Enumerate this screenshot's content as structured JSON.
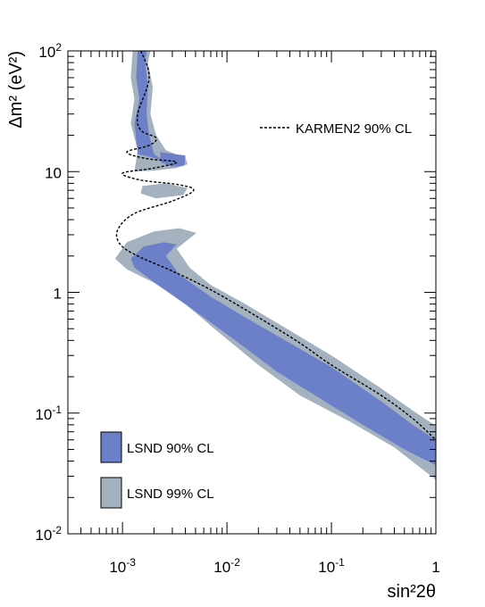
{
  "chart_data": {
    "type": "area",
    "xscale": "log",
    "yscale": "log",
    "xlim": [
      0.0003,
      1
    ],
    "ylim": [
      0.01,
      100
    ],
    "xlabel": "sin²2θ",
    "ylabel": "Δm² (eV²)",
    "x_ticks": [
      {
        "value": 0.001,
        "base": "10",
        "exp": "-3"
      },
      {
        "value": 0.01,
        "base": "10",
        "exp": "-2"
      },
      {
        "value": 0.1,
        "base": "10",
        "exp": "-1"
      },
      {
        "value": 1,
        "base": "1",
        "exp": ""
      }
    ],
    "y_ticks": [
      {
        "value": 0.01,
        "base": "10",
        "exp": "-2"
      },
      {
        "value": 0.1,
        "base": "10",
        "exp": "-1"
      },
      {
        "value": 1,
        "base": "1",
        "exp": ""
      },
      {
        "value": 10,
        "base": "10",
        "exp": ""
      },
      {
        "value": 100,
        "base": "10",
        "exp": "2"
      }
    ],
    "grid": false,
    "series": [
      {
        "name": "LSND 99% CL",
        "color": "#a4b2bf",
        "kind": "region",
        "polygon": [
          [
            0.00125,
            100
          ],
          [
            0.00185,
            100
          ],
          [
            0.00175,
            80
          ],
          [
            0.00195,
            50
          ],
          [
            0.00185,
            30
          ],
          [
            0.0021,
            20
          ],
          [
            0.0026,
            15
          ],
          [
            0.004,
            13
          ],
          [
            0.0042,
            11.5
          ],
          [
            0.0033,
            10.7
          ],
          [
            0.002,
            10.2
          ],
          [
            0.0013,
            10
          ],
          [
            0.0014,
            15
          ],
          [
            0.0012,
            25
          ],
          [
            0.0013,
            40
          ],
          [
            0.0012,
            60
          ]
        ],
        "polygon2": [
          [
            0.00155,
            7.6
          ],
          [
            0.0026,
            8.0
          ],
          [
            0.0042,
            7.3
          ],
          [
            0.0038,
            6.4
          ],
          [
            0.0021,
            6.0
          ],
          [
            0.0015,
            6.6
          ]
        ],
        "polygon3": [
          [
            0.00085,
            1.9
          ],
          [
            0.0011,
            2.6
          ],
          [
            0.002,
            3.2
          ],
          [
            0.0035,
            3.4
          ],
          [
            0.0051,
            3.1
          ],
          [
            0.0033,
            2.3
          ],
          [
            0.0044,
            1.6
          ],
          [
            0.007,
            1.15
          ],
          [
            0.015,
            0.8
          ],
          [
            0.03,
            0.56
          ],
          [
            0.1,
            0.3
          ],
          [
            0.3,
            0.16
          ],
          [
            0.6,
            0.105
          ],
          [
            1.0,
            0.078
          ],
          [
            1.0,
            0.028
          ],
          [
            0.4,
            0.052
          ],
          [
            0.15,
            0.085
          ],
          [
            0.05,
            0.14
          ],
          [
            0.02,
            0.25
          ],
          [
            0.008,
            0.48
          ],
          [
            0.004,
            0.8
          ],
          [
            0.002,
            1.2
          ],
          [
            0.0011,
            1.55
          ]
        ]
      },
      {
        "name": "LSND 90% CL",
        "color": "#6b80c9",
        "kind": "region",
        "polygon": [
          [
            0.0014,
            100
          ],
          [
            0.0017,
            100
          ],
          [
            0.00165,
            80
          ],
          [
            0.00175,
            50
          ],
          [
            0.0017,
            30
          ],
          [
            0.0018,
            20
          ],
          [
            0.002,
            14
          ],
          [
            0.0024,
            12.5
          ],
          [
            0.0014,
            14
          ],
          [
            0.0013,
            25
          ],
          [
            0.00145,
            40
          ],
          [
            0.00135,
            60
          ]
        ],
        "polygon2": [
          [
            0.0023,
            14.5
          ],
          [
            0.004,
            13.6
          ],
          [
            0.0039,
            11.2
          ],
          [
            0.003,
            11.0
          ],
          [
            0.0023,
            12.0
          ]
        ],
        "polygon3": [
          [
            0.0012,
            1.9
          ],
          [
            0.0016,
            2.4
          ],
          [
            0.0025,
            2.6
          ],
          [
            0.0033,
            2.5
          ],
          [
            0.0026,
            2.0
          ],
          [
            0.0035,
            1.4
          ],
          [
            0.007,
            0.92
          ],
          [
            0.015,
            0.62
          ],
          [
            0.04,
            0.38
          ],
          [
            0.1,
            0.24
          ],
          [
            0.3,
            0.125
          ],
          [
            0.6,
            0.08
          ],
          [
            1.0,
            0.06
          ],
          [
            1.0,
            0.037
          ],
          [
            0.5,
            0.05
          ],
          [
            0.2,
            0.08
          ],
          [
            0.08,
            0.13
          ],
          [
            0.03,
            0.22
          ],
          [
            0.012,
            0.4
          ],
          [
            0.006,
            0.62
          ],
          [
            0.003,
            0.95
          ],
          [
            0.0018,
            1.3
          ],
          [
            0.0013,
            1.6
          ]
        ]
      },
      {
        "name": "KARMEN2 90% CL",
        "color": "#000000",
        "kind": "line",
        "dashed": true,
        "points": [
          [
            0.0015,
            100
          ],
          [
            0.0018,
            60
          ],
          [
            0.0014,
            30
          ],
          [
            0.0015,
            22
          ],
          [
            0.0021,
            19
          ],
          [
            0.0018,
            16.5
          ],
          [
            0.0011,
            14.5
          ],
          [
            0.0017,
            12.8
          ],
          [
            0.0033,
            12.0
          ],
          [
            0.002,
            10.7
          ],
          [
            0.001,
            9.7
          ],
          [
            0.0015,
            8.5
          ],
          [
            0.0034,
            7.8
          ],
          [
            0.0048,
            7.0
          ],
          [
            0.003,
            5.7
          ],
          [
            0.0013,
            4.5
          ],
          [
            0.0009,
            3.3
          ],
          [
            0.00095,
            2.5
          ],
          [
            0.0014,
            2.0
          ],
          [
            0.003,
            1.5
          ],
          [
            0.007,
            1.05
          ],
          [
            0.02,
            0.62
          ],
          [
            0.05,
            0.38
          ],
          [
            0.1,
            0.25
          ],
          [
            0.3,
            0.14
          ],
          [
            0.6,
            0.09
          ],
          [
            1.0,
            0.06
          ]
        ]
      }
    ],
    "legend": [
      {
        "label": "KARMEN2 90% CL",
        "placement": "top-right",
        "symbol": "dashed-line"
      },
      {
        "label": "LSND 90% CL",
        "placement": "bottom-left",
        "symbol": "box",
        "color": "#6b80c9"
      },
      {
        "label": "LSND 99% CL",
        "placement": "bottom-left",
        "symbol": "box",
        "color": "#a4b2bf"
      }
    ]
  }
}
